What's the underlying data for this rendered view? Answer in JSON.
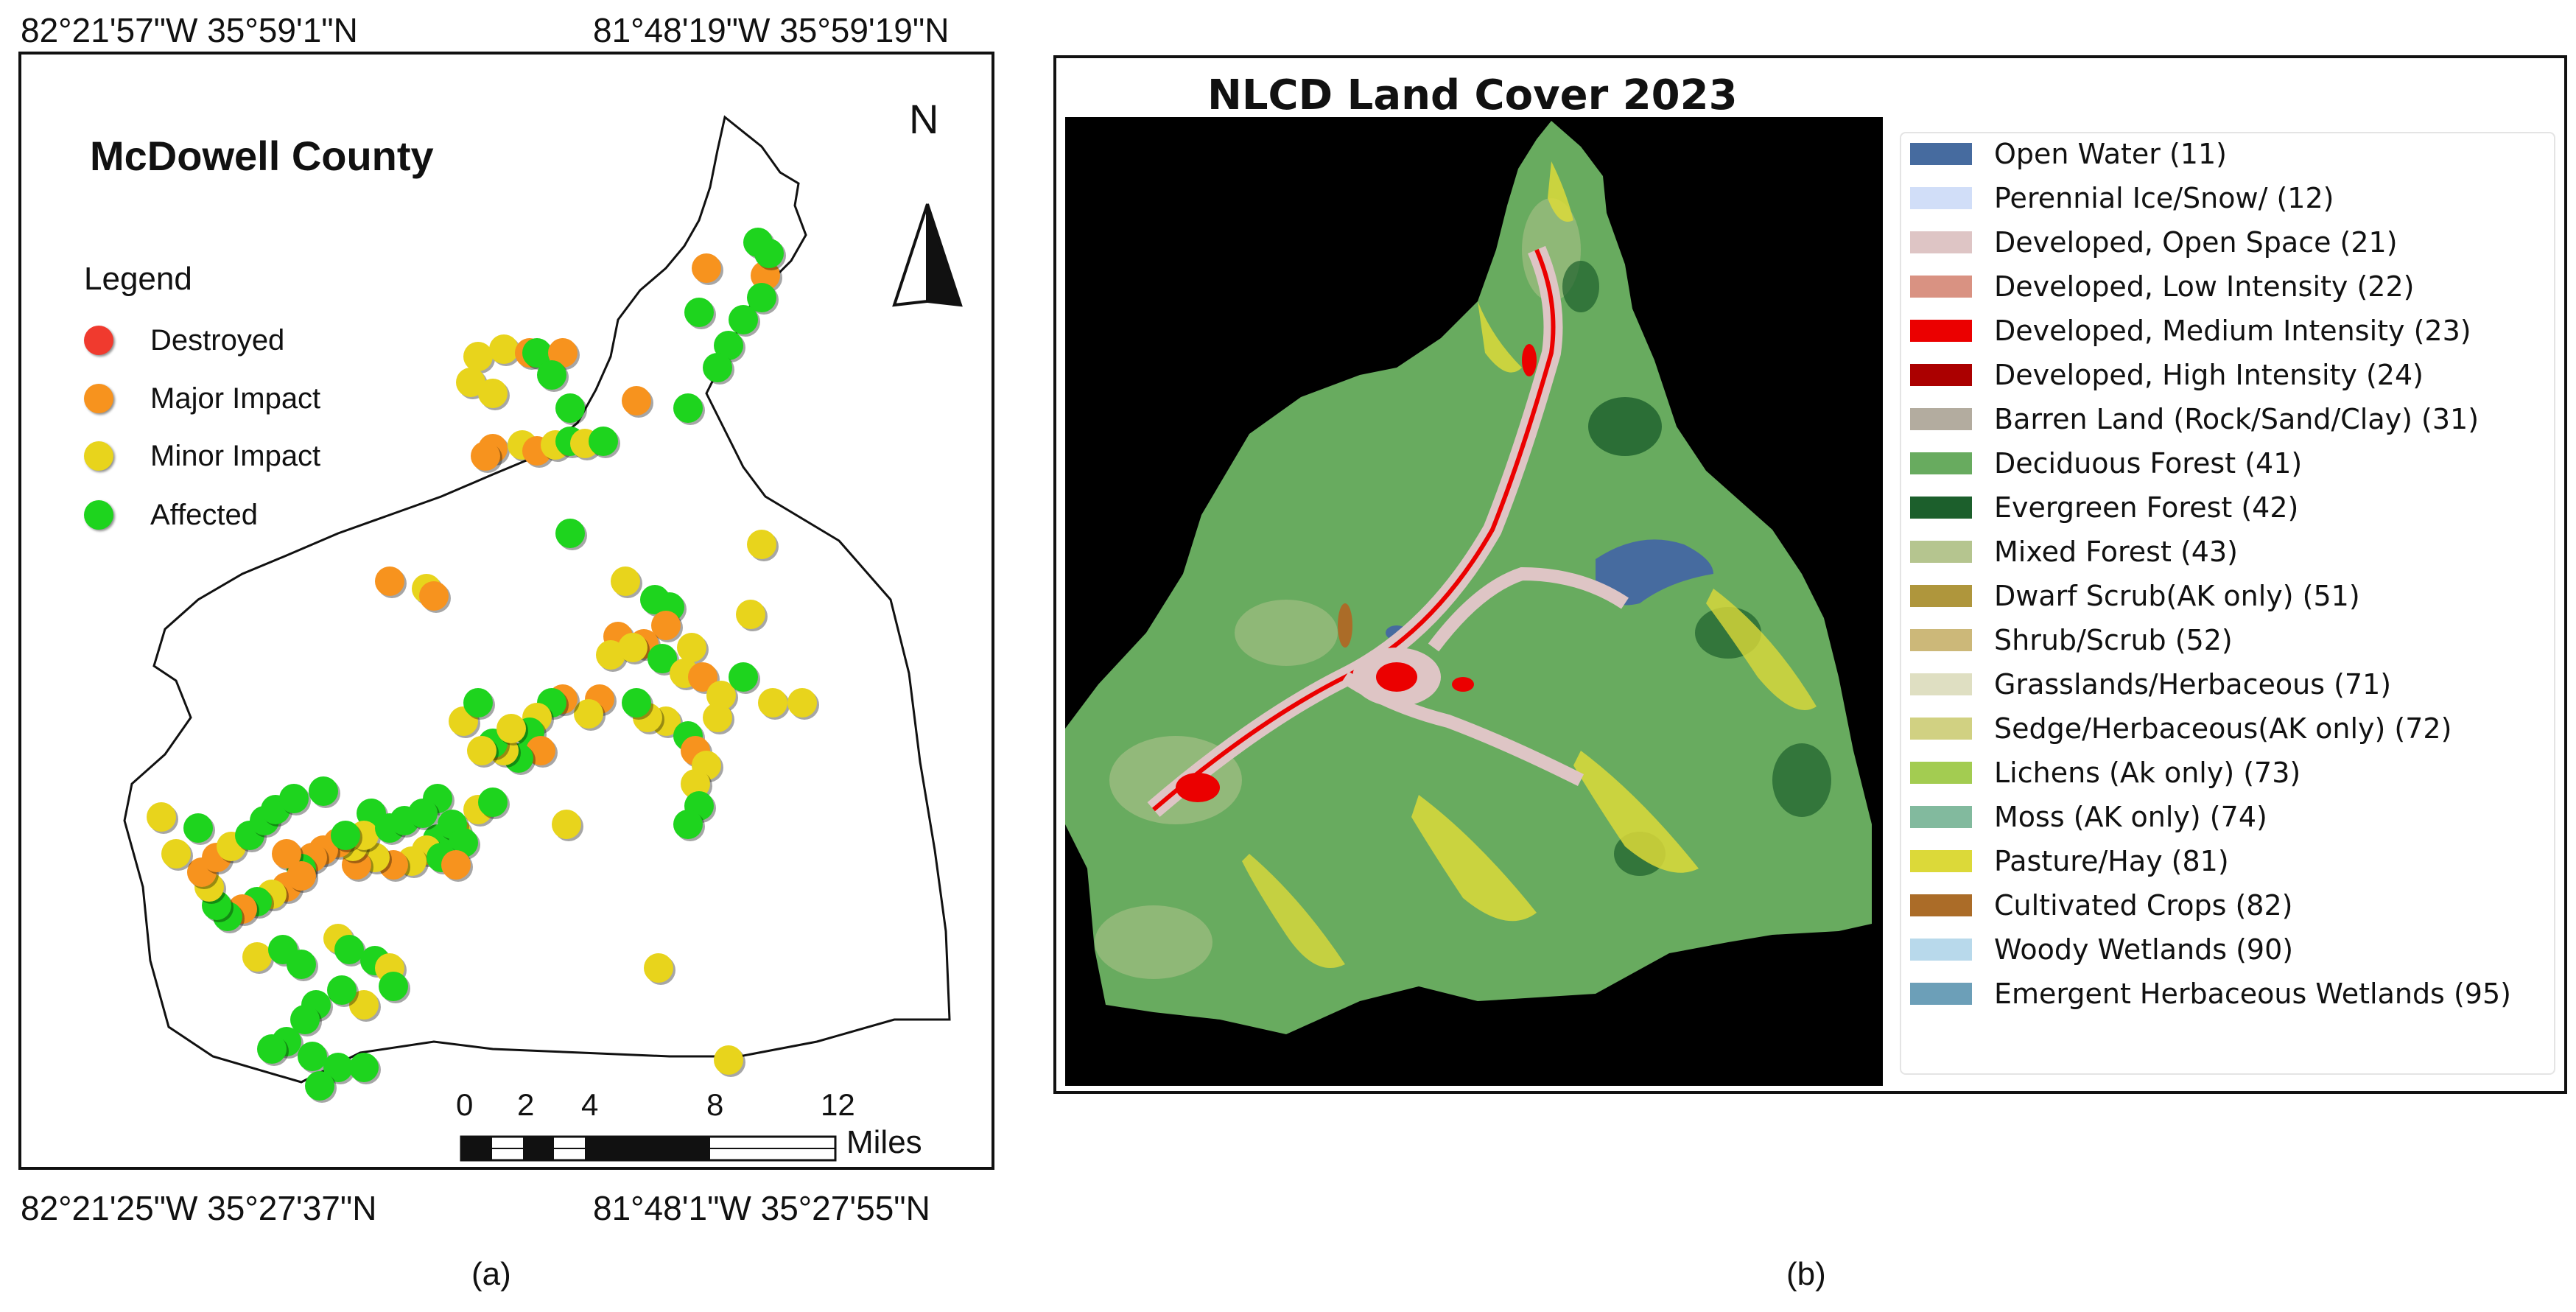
{
  "panel_a": {
    "coords": {
      "top_left": "82°21'57\"W 35°59'1\"N",
      "top_right": "81°48'19\"W 35°59'19\"N",
      "bottom_left": "82°21'25\"W 35°27'37\"N",
      "bottom_right": "81°48'1\"W 35°27'55\"N"
    },
    "title": "McDowell County",
    "north_label": "N",
    "legend": {
      "title": "Legend",
      "items": [
        {
          "label": "Destroyed",
          "color": "#f03a2e"
        },
        {
          "label": "Major Impact",
          "color": "#f7931e"
        },
        {
          "label": "Minor Impact",
          "color": "#e8d41c"
        },
        {
          "label": "Affected",
          "color": "#1ed41e"
        }
      ]
    },
    "scale": {
      "ticks": [
        "0",
        "2",
        "4",
        "8",
        "12"
      ],
      "unit": "Miles"
    },
    "label": "(a)"
  },
  "panel_b": {
    "title": "NLCD Land Cover 2023",
    "legend": [
      {
        "label": "Open Water (11)",
        "color": "#466b9f"
      },
      {
        "label": "Perennial Ice/Snow/ (12)",
        "color": "#d1def8"
      },
      {
        "label": "Developed, Open Space (21)",
        "color": "#dec5c5"
      },
      {
        "label": "Developed, Low Intensity (22)",
        "color": "#d99282"
      },
      {
        "label": "Developed, Medium Intensity (23)",
        "color": "#eb0000"
      },
      {
        "label": "Developed, High Intensity (24)",
        "color": "#ab0000"
      },
      {
        "label": "Barren Land (Rock/Sand/Clay) (31)",
        "color": "#b3ac9f"
      },
      {
        "label": "Deciduous Forest (41)",
        "color": "#68ab5f"
      },
      {
        "label": "Evergreen Forest (42)",
        "color": "#1c5f2c"
      },
      {
        "label": "Mixed Forest (43)",
        "color": "#b5c58f"
      },
      {
        "label": "Dwarf Scrub(AK only) (51)",
        "color": "#af963c"
      },
      {
        "label": "Shrub/Scrub (52)",
        "color": "#ccb879"
      },
      {
        "label": "Grasslands/Herbaceous (71)",
        "color": "#dfdfc2"
      },
      {
        "label": "Sedge/Herbaceous(AK only) (72)",
        "color": "#d1d182"
      },
      {
        "label": "Lichens (Ak only) (73)",
        "color": "#a3cc51"
      },
      {
        "label": "Moss (AK only) (74)",
        "color": "#82ba9e"
      },
      {
        "label": "Pasture/Hay (81)",
        "color": "#dcd939"
      },
      {
        "label": "Cultivated Crops (82)",
        "color": "#ab6c28"
      },
      {
        "label": "Woody Wetlands (90)",
        "color": "#b8d9eb"
      },
      {
        "label": "Emergent Herbaceous Wetlands (95)",
        "color": "#6c9fb8"
      }
    ],
    "label": "(b)"
  }
}
